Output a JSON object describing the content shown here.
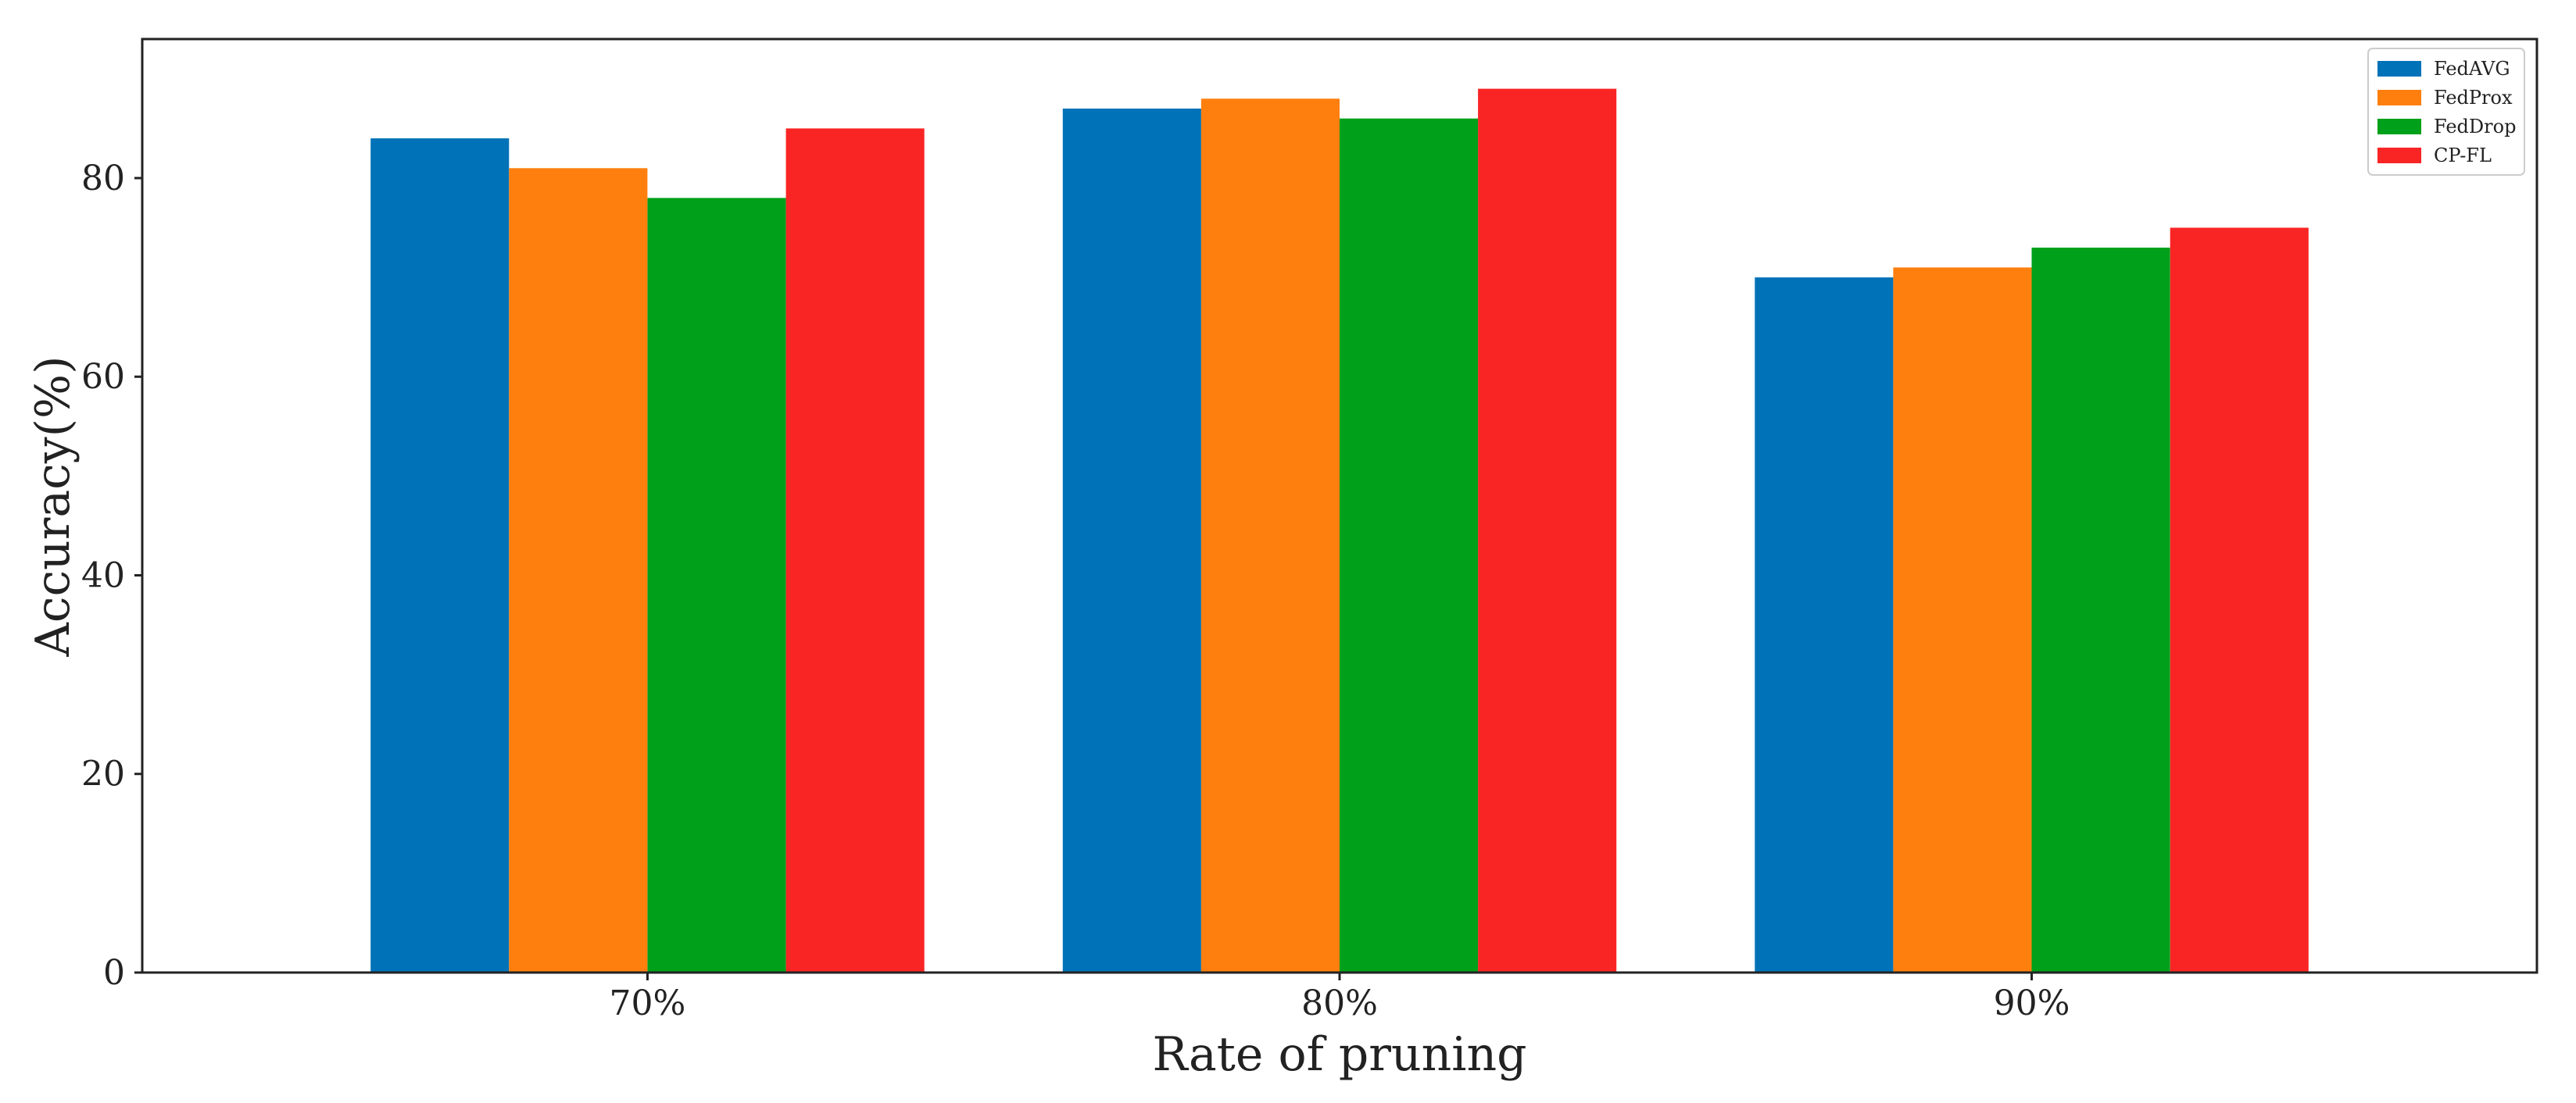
{
  "chart_data": {
    "type": "bar",
    "categories": [
      "70%",
      "80%",
      "90%"
    ],
    "series": [
      {
        "name": "FedAVG",
        "color": "#0072b8",
        "values": [
          84,
          87,
          70
        ]
      },
      {
        "name": "FedProx",
        "color": "#ff7f0e",
        "values": [
          81,
          88,
          71
        ]
      },
      {
        "name": "FedDrop",
        "color": "#00a01a",
        "values": [
          78,
          86,
          73
        ]
      },
      {
        "name": "CP-FL",
        "color": "#f92525",
        "values": [
          85,
          89,
          75
        ]
      }
    ],
    "xlabel": "Rate of pruning",
    "ylabel": "Accuracy(%)",
    "ylim": [
      0,
      94
    ],
    "yticks": [
      0,
      20,
      40,
      60,
      80
    ],
    "grid": false,
    "legend_position": "top-right"
  }
}
